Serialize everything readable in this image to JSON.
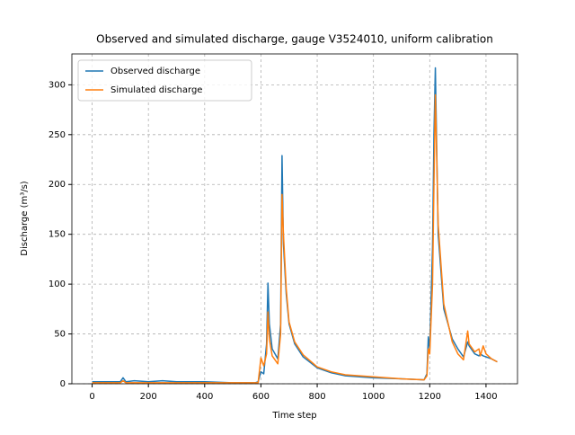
{
  "chart_data": {
    "type": "line",
    "title": "Observed and simulated discharge, gauge V3524010, uniform calibration",
    "x_label": "Time step",
    "y_label": "Discharge (m³/s)",
    "x": [
      0,
      50,
      100,
      110,
      120,
      150,
      200,
      250,
      300,
      400,
      500,
      580,
      590,
      600,
      610,
      620,
      625,
      630,
      640,
      660,
      670,
      675,
      680,
      690,
      700,
      720,
      750,
      800,
      850,
      900,
      1000,
      1100,
      1180,
      1190,
      1195,
      1200,
      1210,
      1215,
      1220,
      1230,
      1250,
      1280,
      1300,
      1320,
      1335,
      1340,
      1360,
      1375,
      1380,
      1390,
      1400,
      1420,
      1440
    ],
    "series": [
      {
        "name": "Observed discharge",
        "color": "#1f77b4",
        "values": [
          2,
          2,
          2,
          6,
          2,
          3,
          2,
          3,
          2,
          2,
          1,
          1,
          2,
          12,
          10,
          40,
          101,
          60,
          35,
          25,
          60,
          229,
          140,
          90,
          60,
          40,
          27,
          16,
          11,
          8,
          6,
          5,
          4,
          10,
          47,
          35,
          137,
          250,
          317,
          150,
          75,
          45,
          35,
          27,
          42,
          38,
          30,
          28,
          30,
          28,
          27,
          25,
          22
        ]
      },
      {
        "name": "Simulated discharge",
        "color": "#ff7f0e",
        "values": [
          1,
          1,
          1,
          3,
          1,
          1,
          1,
          1,
          1,
          1,
          1,
          1,
          1,
          26,
          18,
          30,
          72,
          45,
          28,
          20,
          50,
          190,
          150,
          95,
          62,
          42,
          29,
          17,
          12,
          9,
          7,
          5,
          4,
          8,
          35,
          30,
          100,
          200,
          290,
          160,
          80,
          42,
          30,
          24,
          53,
          40,
          32,
          35,
          28,
          38,
          30,
          25,
          22
        ]
      }
    ],
    "xlim": [
      -72,
      1512
    ],
    "ylim": [
      0,
      331
    ],
    "xticks": [
      0,
      200,
      400,
      600,
      800,
      1000,
      1200,
      1400
    ],
    "yticks": [
      0,
      50,
      100,
      150,
      200,
      250,
      300
    ],
    "grid": true,
    "legend": "upper-left"
  }
}
